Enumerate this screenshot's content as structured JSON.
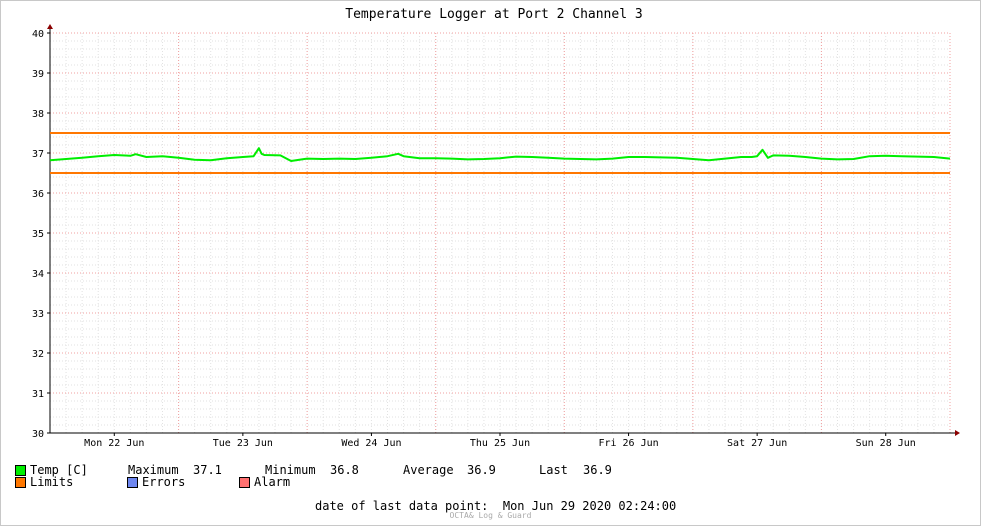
{
  "chart_data": {
    "type": "line",
    "title": "Temperature Logger at Port 2 Channel 3",
    "ylim": [
      30,
      40
    ],
    "yticks": [
      30,
      31,
      32,
      33,
      34,
      35,
      36,
      37,
      38,
      39,
      40
    ],
    "x_day_labels": [
      "Mon 22 Jun",
      "Tue 23 Jun",
      "Wed 24 Jun",
      "Thu 25 Jun",
      "Fri 26 Jun",
      "Sat 27 Jun",
      "Sun 28 Jun"
    ],
    "x_day_ticks_hours": [
      0,
      24,
      48,
      72,
      96,
      120,
      144
    ],
    "x_range_hours": [
      -12,
      156
    ],
    "limits": [
      37.5,
      36.5
    ],
    "series": [
      {
        "name": "Temp [C]",
        "color": "#00ee00",
        "x_hours": [
          -12,
          -9,
          -6,
          -3,
          0,
          3,
          4,
          6,
          9,
          12,
          15,
          18,
          21,
          24,
          26,
          27,
          27.5,
          28,
          31,
          33,
          35,
          36,
          39,
          42,
          45,
          48,
          51,
          53,
          54,
          57,
          60,
          63,
          66,
          69,
          72,
          75,
          78,
          81,
          84,
          87,
          90,
          93,
          96,
          99,
          102,
          105,
          108,
          111,
          114,
          117,
          119,
          120,
          121,
          122,
          123,
          126,
          129,
          132,
          135,
          138,
          141,
          144,
          147,
          150,
          153,
          156
        ],
        "y": [
          36.82,
          36.85,
          36.88,
          36.92,
          36.95,
          36.93,
          36.97,
          36.9,
          36.92,
          36.88,
          36.83,
          36.82,
          36.87,
          36.9,
          36.92,
          37.12,
          36.98,
          36.95,
          36.94,
          36.8,
          36.84,
          36.86,
          36.85,
          36.86,
          36.85,
          36.88,
          36.92,
          36.98,
          36.92,
          36.87,
          36.87,
          36.86,
          36.84,
          36.85,
          36.87,
          36.91,
          36.9,
          36.88,
          36.86,
          36.85,
          36.84,
          36.86,
          36.9,
          36.9,
          36.89,
          36.88,
          36.85,
          36.82,
          36.86,
          36.9,
          36.9,
          36.92,
          37.08,
          36.88,
          36.94,
          36.93,
          36.9,
          36.86,
          36.84,
          36.85,
          36.92,
          36.93,
          36.92,
          36.91,
          36.9,
          36.86
        ]
      }
    ]
  },
  "legend": {
    "temp_label": "Temp [C]",
    "maximum_label": "Maximum",
    "maximum_value": "37.1",
    "minimum_label": "Minimum",
    "minimum_value": "36.8",
    "average_label": "Average",
    "average_value": "36.9",
    "last_label": "Last",
    "last_value": "36.9",
    "limits_label": "Limits",
    "errors_label": "Errors",
    "alarm_label": "Alarm"
  },
  "colors": {
    "temp": "#00ee00",
    "limits": "#ff7700",
    "errors": "#6e87f0",
    "alarm": "#ff7070"
  },
  "last_data_point": "date of last data point:  Mon Jun 29 2020 02:24:00",
  "footer": "OCTA& Log & Guard"
}
